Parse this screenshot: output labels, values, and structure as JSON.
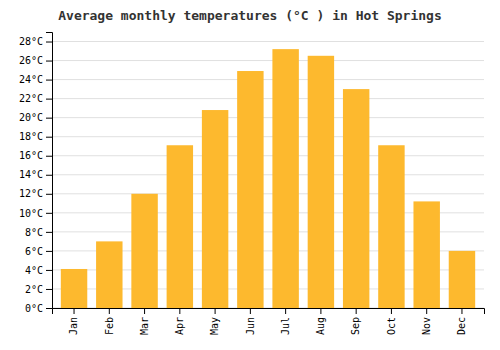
{
  "chart_data": {
    "type": "bar",
    "title": "Average monthly temperatures (°C ) in Hot Springs",
    "categories": [
      "Jan",
      "Feb",
      "Mar",
      "Apr",
      "May",
      "Jun",
      "Jul",
      "Aug",
      "Sep",
      "Oct",
      "Nov",
      "Dec"
    ],
    "values": [
      4.1,
      7.0,
      12.0,
      17.1,
      20.8,
      24.9,
      27.2,
      26.5,
      23.0,
      17.1,
      11.2,
      6.0
    ],
    "color": "#FDB92E",
    "ylim": [
      0,
      29
    ],
    "yticks": [
      {
        "value": 0,
        "label": "0°C"
      },
      {
        "value": 2,
        "label": "2°C"
      },
      {
        "value": 4,
        "label": "4°C"
      },
      {
        "value": 6,
        "label": "6°C"
      },
      {
        "value": 8,
        "label": "8°C"
      },
      {
        "value": 10,
        "label": "10°C"
      },
      {
        "value": 12,
        "label": "12°C"
      },
      {
        "value": 14,
        "label": "14°C"
      },
      {
        "value": 16,
        "label": "16°C"
      },
      {
        "value": 18,
        "label": "18°C"
      },
      {
        "value": 20,
        "label": "20°C"
      },
      {
        "value": 22,
        "label": "22°C"
      },
      {
        "value": 24,
        "label": "24°C"
      },
      {
        "value": 26,
        "label": "26°C"
      },
      {
        "value": 28,
        "label": "28°C"
      }
    ],
    "grid": true
  }
}
